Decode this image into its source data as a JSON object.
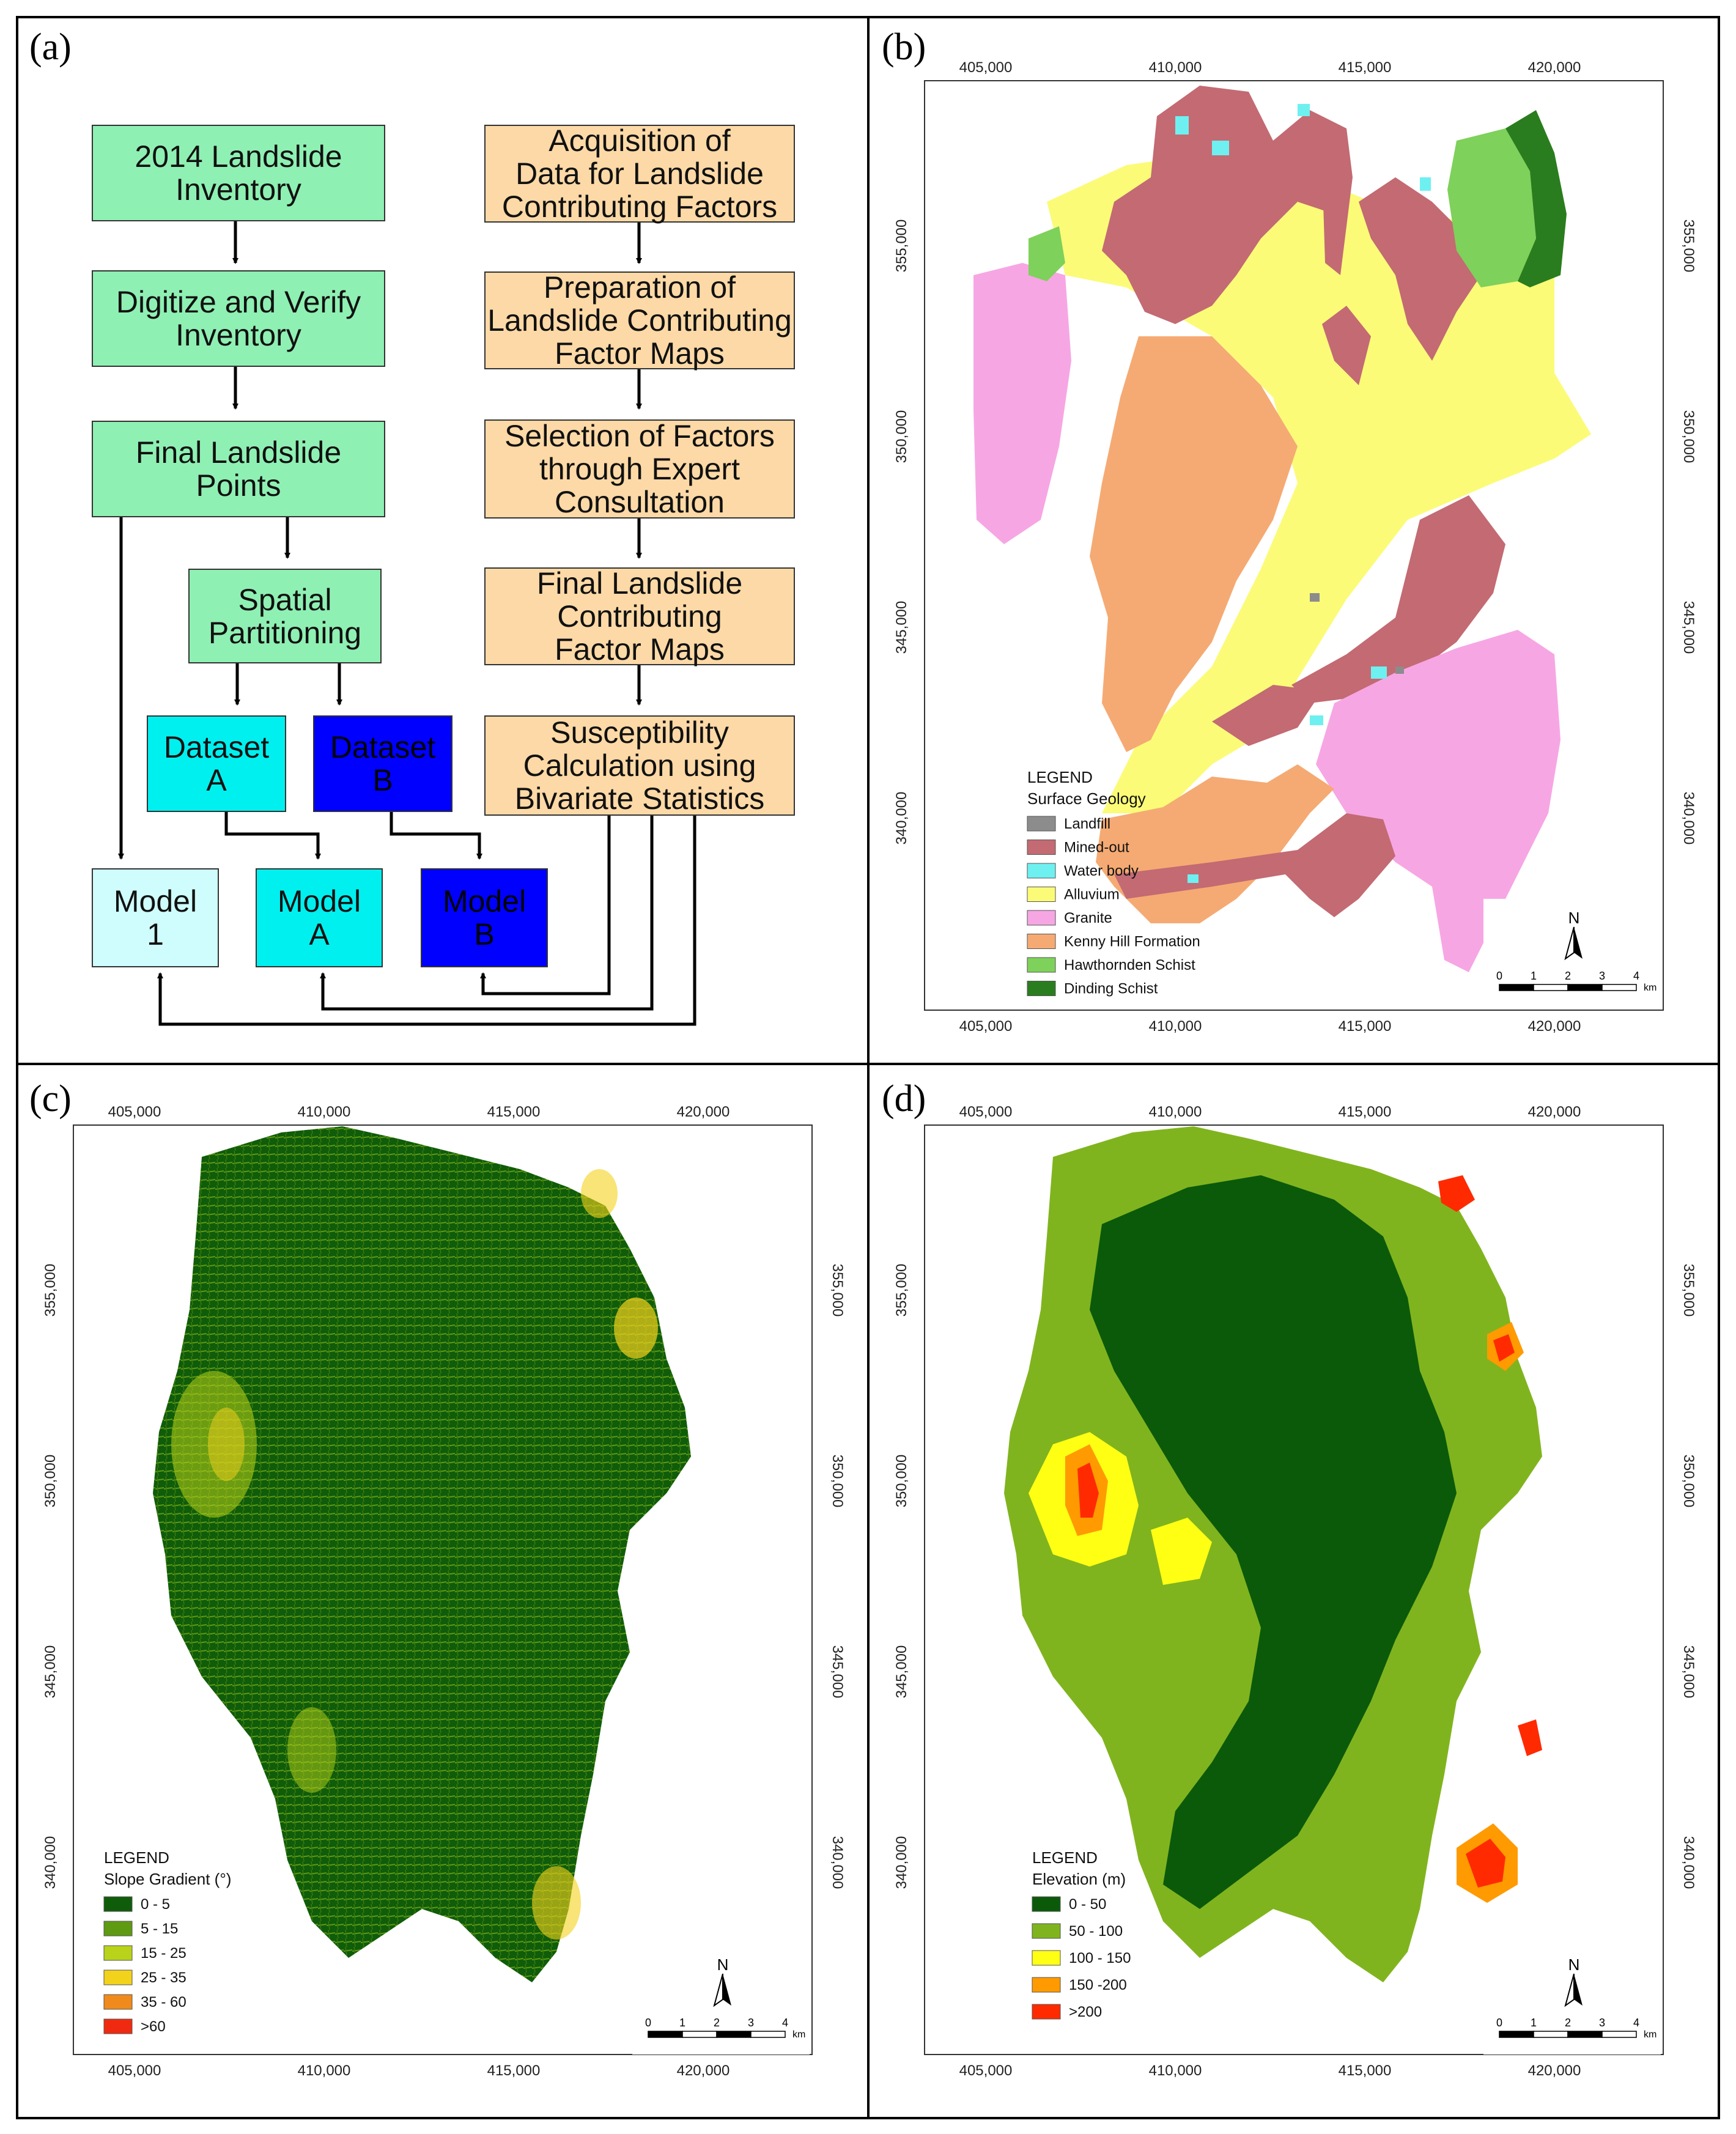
{
  "panels": {
    "a": "(a)",
    "b": "(b)",
    "c": "(c)",
    "d": "(d)"
  },
  "flowchart": {
    "left": [
      "2014 Landslide\nInventory",
      "Digitize and Verify\nInventory",
      "Final Landslide\nPoints",
      "Spatial\nPartitioning"
    ],
    "right": [
      "Acquisition of\nData for Landslide\nContributing Factors",
      "Preparation of\nLandslide Contributing\nFactor Maps",
      "Selection of Factors\nthrough Expert\nConsultation",
      "Final Landslide\nContributing\nFactor Maps",
      "Susceptibility\nCalculation using\nBivariate Statistics"
    ],
    "dataset_a": "Dataset\nA",
    "dataset_b": "Dataset\nB",
    "model_1": "Model\n1",
    "model_a": "Model\nA",
    "model_b": "Model\nB"
  },
  "axes": {
    "x_ticks": [
      "405,000",
      "410,000",
      "415,000",
      "420,000"
    ],
    "y_ticks": [
      "355,000",
      "350,000",
      "345,000",
      "340,000"
    ]
  },
  "scalebar": {
    "ticks": [
      "0",
      "1",
      "2",
      "3",
      "4"
    ],
    "unit": "km",
    "north": "N"
  },
  "legend_geology": {
    "heading": "LEGEND",
    "title": "Surface Geology",
    "items": [
      {
        "label": "Landfill",
        "color": "#8c8c8c"
      },
      {
        "label": "Mined-out",
        "color": "#c36a73"
      },
      {
        "label": "Water body",
        "color": "#6ef0f0"
      },
      {
        "label": "Alluvium",
        "color": "#fbfb78"
      },
      {
        "label": "Granite",
        "color": "#f7a6e4"
      },
      {
        "label": "Kenny Hill Formation",
        "color": "#f5aa73"
      },
      {
        "label": "Hawthornden Schist",
        "color": "#7ed15a"
      },
      {
        "label": "Dinding Schist",
        "color": "#2a7d1e"
      }
    ]
  },
  "legend_slope": {
    "heading": "LEGEND",
    "title": "Slope Gradient (°)",
    "items": [
      {
        "label": "0 - 5",
        "color": "#0f5c0a"
      },
      {
        "label": "5 - 15",
        "color": "#5e9a12"
      },
      {
        "label": "15 - 25",
        "color": "#b9d21a"
      },
      {
        "label": "25 - 35",
        "color": "#f3d21c"
      },
      {
        "label": "35 - 60",
        "color": "#f08a1c"
      },
      {
        "label": ">60",
        "color": "#f02a10"
      }
    ]
  },
  "legend_elevation": {
    "heading": "LEGEND",
    "title": "Elevation (m)",
    "items": [
      {
        "label": "0 - 50",
        "color": "#0a5a0a"
      },
      {
        "label": "50 - 100",
        "color": "#80b41e"
      },
      {
        "label": "100 - 150",
        "color": "#ffff14"
      },
      {
        "label": "150 -200",
        "color": "#ff9a00"
      },
      {
        "label": ">200",
        "color": "#ff2a00"
      }
    ]
  }
}
